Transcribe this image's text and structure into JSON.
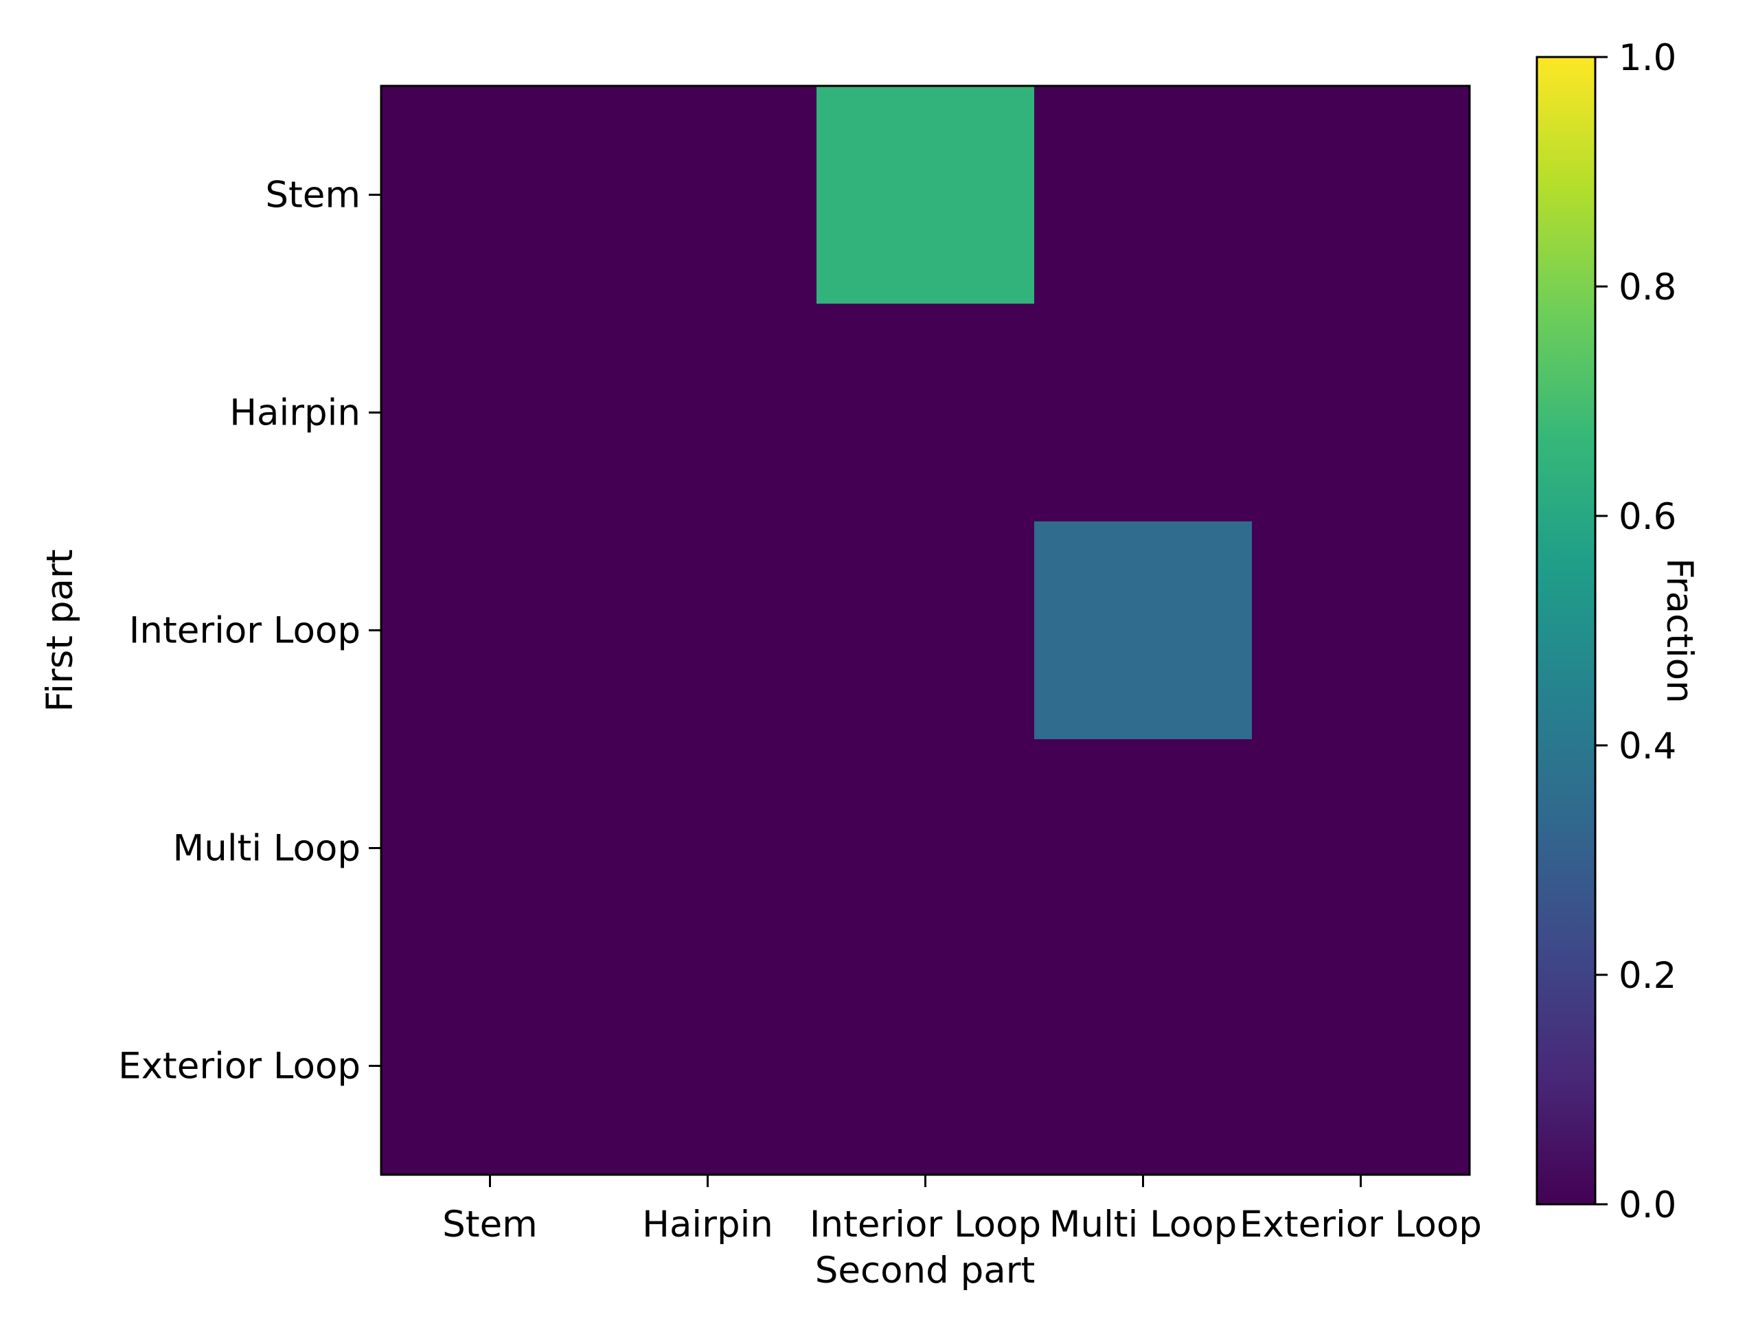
{
  "chart_data": {
    "type": "heatmap",
    "title": "",
    "xlabel": "Second part",
    "ylabel": "First part",
    "x_categories": [
      "Stem",
      "Hairpin",
      "Interior Loop",
      "Multi Loop",
      "Exterior Loop"
    ],
    "y_categories": [
      "Stem",
      "Hairpin",
      "Interior Loop",
      "Multi Loop",
      "Exterior Loop"
    ],
    "values": [
      [
        0.0,
        0.0,
        0.65,
        0.0,
        0.0
      ],
      [
        0.0,
        0.0,
        0.0,
        0.0,
        0.0
      ],
      [
        0.0,
        0.0,
        0.0,
        0.35,
        0.0
      ],
      [
        0.0,
        0.0,
        0.0,
        0.0,
        0.0
      ],
      [
        0.0,
        0.0,
        0.0,
        0.0,
        0.0
      ]
    ],
    "colorbar": {
      "label": "Fraction",
      "range": [
        0.0,
        1.0
      ],
      "ticks": [
        "0.0",
        "0.2",
        "0.4",
        "0.6",
        "0.8",
        "1.0"
      ],
      "colormap": "viridis",
      "colors": [
        "#440154",
        "#482878",
        "#3e4989",
        "#31688e",
        "#26828e",
        "#1f9e89",
        "#35b779",
        "#6ece58",
        "#b5de2b",
        "#fde725"
      ]
    },
    "grid": false,
    "legend": "none"
  }
}
